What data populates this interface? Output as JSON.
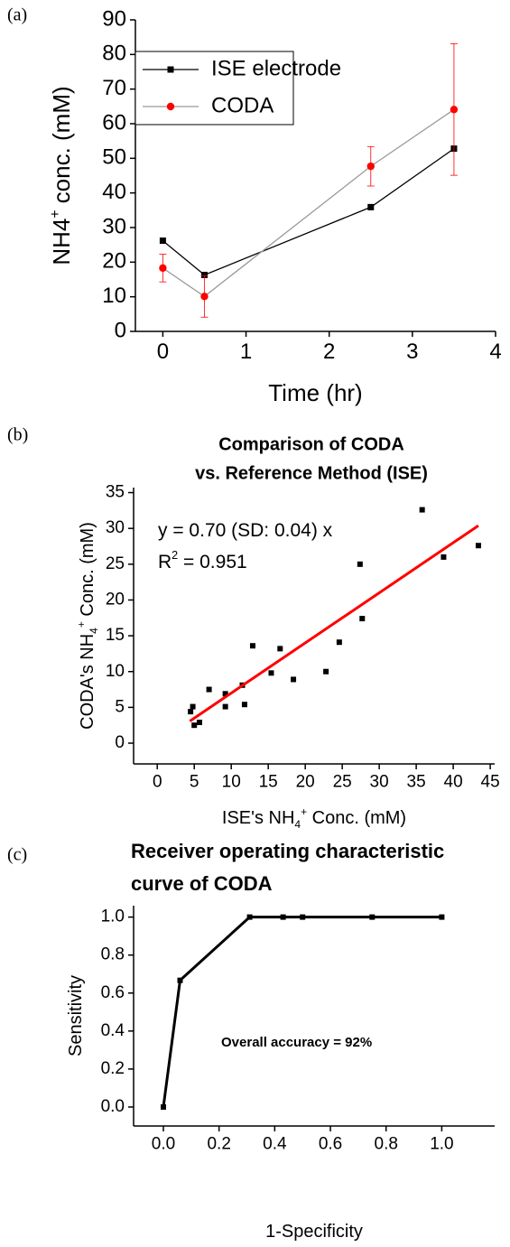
{
  "chart_data": [
    {
      "type": "line",
      "panel_label": "(a)",
      "x_label": [
        {
          "text": "Time (hr)"
        }
      ],
      "y_label": [
        {
          "text": "NH4"
        },
        {
          "text": "+",
          "script": "sup"
        },
        {
          "text": " conc. (mM)"
        }
      ],
      "x": [
        0,
        0.5,
        2.5,
        3.5
      ],
      "series": [
        {
          "name": "ISE electrode",
          "color": "#000000",
          "line_color": "#000000",
          "marker": "square",
          "values": [
            26.2,
            16.3,
            35.9,
            52.8
          ]
        },
        {
          "name": "CODA",
          "color": "#ff0000",
          "line_color": "#9a9a9a",
          "marker": "circle",
          "values": [
            18.3,
            10.1,
            47.7,
            64.1
          ],
          "errors": [
            4,
            6,
            5.7,
            19
          ]
        }
      ],
      "xlim": [
        -0.33,
        4
      ],
      "ylim": [
        0,
        90
      ],
      "xticks": [
        0,
        1,
        2,
        3,
        4
      ],
      "yticks": [
        0,
        10,
        20,
        30,
        40,
        50,
        60,
        70,
        80,
        90
      ],
      "legend": "upper left"
    },
    {
      "type": "scatter",
      "panel_label": "(b)",
      "title": [
        "Comparison of CODA",
        "vs. Reference Method (ISE)"
      ],
      "x_label": [
        {
          "text": "ISE's NH"
        },
        {
          "text": "4",
          "script": "sub"
        },
        {
          "text": "+",
          "script": "sup"
        },
        {
          "text": " Conc. (mM)"
        }
      ],
      "y_label": [
        {
          "text": "CODA's NH"
        },
        {
          "text": "4",
          "script": "sub"
        },
        {
          "text": "+",
          "script": "sup"
        },
        {
          "text": " Conc. (mM)"
        }
      ],
      "annotations": [
        [
          {
            "text": "y = 0.70 (SD: 0.04) x"
          }
        ],
        [
          {
            "text": "R"
          },
          {
            "text": "2",
            "script": "sup"
          },
          {
            "text": " = 0.951"
          }
        ]
      ],
      "x": [
        4.5,
        4.8,
        5,
        5.7,
        7,
        9.2,
        9.2,
        11.5,
        11.8,
        12.9,
        15.4,
        16.6,
        18.4,
        22.8,
        24.6,
        27.4,
        27.7,
        35.8,
        38.7,
        43.4
      ],
      "values": [
        4.4,
        5.1,
        2.5,
        2.9,
        7.5,
        6.9,
        5.1,
        8.1,
        5.4,
        13.6,
        9.8,
        13.2,
        8.9,
        10.0,
        14.1,
        25,
        17.4,
        32.6,
        26,
        27.6
      ],
      "color": "#000000",
      "fit": {
        "slope": 0.7,
        "x": [
          4.4,
          43.4
        ],
        "color": "#ff0000"
      },
      "xlim": [
        -3.2,
        45.6
      ],
      "ylim": [
        -2.9,
        35.7
      ],
      "xticks": [
        0,
        5,
        10,
        15,
        20,
        25,
        30,
        35,
        40,
        45
      ],
      "yticks": [
        0,
        5,
        10,
        15,
        20,
        25,
        30,
        35
      ]
    },
    {
      "type": "line",
      "panel_label": "(c)",
      "title": [
        "Receiver operating characteristic",
        "curve of CODA"
      ],
      "x_label": [
        {
          "text": "1-Specificity"
        }
      ],
      "y_label": [
        {
          "text": "Sensitivity"
        }
      ],
      "annotations": [
        [
          {
            "text": "Overall accuracy = 92%"
          }
        ]
      ],
      "x": [
        0,
        0.06,
        0.31,
        0.43,
        0.5,
        0.75,
        1
      ],
      "series": [
        {
          "color": "#000000",
          "line_color": "#000000",
          "marker": "square",
          "values": [
            0,
            0.667,
            1,
            1,
            1,
            1,
            1
          ]
        }
      ],
      "xlim": [
        -0.107,
        1.19
      ],
      "ylim": [
        -0.1,
        1.06
      ],
      "xticks": [
        {
          "value": 0,
          "label": "0.0"
        },
        0.2,
        0.4,
        0.6,
        0.8,
        {
          "value": 1,
          "label": "1.0"
        }
      ],
      "yticks": [
        {
          "value": 0,
          "label": "0.0"
        },
        0.2,
        0.4,
        0.6,
        0.8,
        {
          "value": 1,
          "label": "1.0"
        }
      ]
    }
  ]
}
